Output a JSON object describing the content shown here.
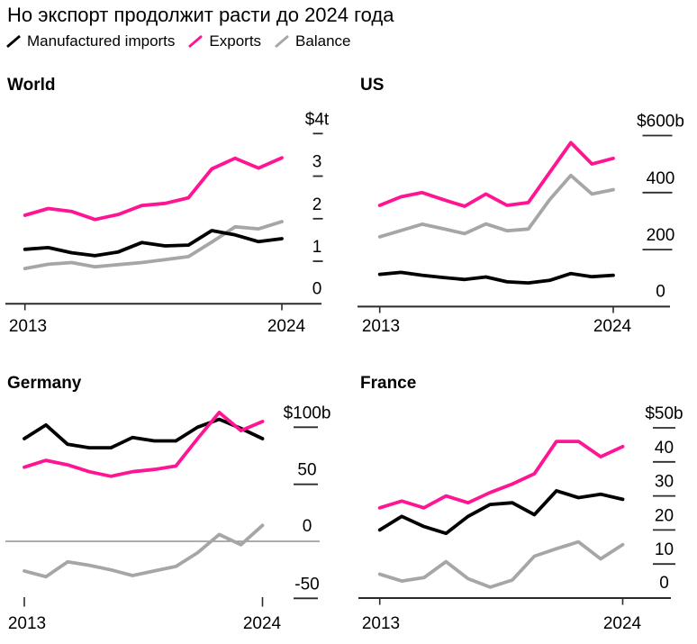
{
  "header": {
    "title": "Но экспорт продолжит расти до 2024 года"
  },
  "legend": {
    "items": [
      {
        "label": "Manufactured imports",
        "series": "imports"
      },
      {
        "label": "Exports",
        "series": "exports"
      },
      {
        "label": "Balance",
        "series": "balance"
      }
    ]
  },
  "chart_data": {
    "type": "line",
    "x": [
      2013,
      2014,
      2015,
      2016,
      2017,
      2018,
      2019,
      2020,
      2021,
      2022,
      2023,
      2024
    ],
    "x_axis_labels": [
      "2013",
      "2024"
    ],
    "grid": false,
    "legend_position": "top",
    "colors": {
      "imports": "#000000",
      "exports": "#ff1493",
      "balance": "#a6a6a6",
      "axis": "#2b2b2b",
      "zero_line": "#7a7a7a"
    },
    "panels": [
      {
        "id": "world",
        "title": "World",
        "unit": "trillion USD",
        "ylim": [
          0,
          4
        ],
        "y_ticks": [
          {
            "label": "$4t",
            "value": 4,
            "dash": true
          },
          {
            "label": "3",
            "value": 3,
            "dash": true
          },
          {
            "label": "2",
            "value": 2,
            "dash": true
          },
          {
            "label": "1",
            "value": 1,
            "dash": true
          },
          {
            "label": "0",
            "value": 0,
            "dash": false
          }
        ],
        "series": {
          "imports": [
            1.28,
            1.32,
            1.2,
            1.13,
            1.22,
            1.44,
            1.36,
            1.38,
            1.72,
            1.62,
            1.46,
            1.53
          ],
          "exports": [
            2.08,
            2.24,
            2.17,
            1.98,
            2.1,
            2.31,
            2.36,
            2.49,
            3.17,
            3.42,
            3.19,
            3.43
          ],
          "balance": [
            0.83,
            0.93,
            0.97,
            0.87,
            0.92,
            0.97,
            1.04,
            1.11,
            1.45,
            1.81,
            1.76,
            1.93
          ]
        }
      },
      {
        "id": "us",
        "title": "US",
        "unit": "billion USD",
        "ylim": [
          0,
          600
        ],
        "y_ticks": [
          {
            "label": "$600b",
            "value": 600,
            "dash": true
          },
          {
            "label": "400",
            "value": 400,
            "dash": true
          },
          {
            "label": "200",
            "value": 200,
            "dash": true
          },
          {
            "label": "0",
            "value": 0,
            "dash": false
          }
        ],
        "series": {
          "imports": [
            113,
            120,
            110,
            102,
            95,
            104,
            87,
            83,
            92,
            116,
            105,
            110
          ],
          "exports": [
            355,
            385,
            400,
            375,
            352,
            395,
            355,
            365,
            470,
            575,
            500,
            520
          ],
          "balance": [
            245,
            267,
            289,
            273,
            256,
            290,
            266,
            272,
            375,
            460,
            395,
            410
          ]
        }
      },
      {
        "id": "germany",
        "title": "Germany",
        "unit": "billion USD",
        "ylim": [
          -50,
          100
        ],
        "y_ticks": [
          {
            "label": "$100b",
            "value": 100,
            "dash": true
          },
          {
            "label": "50",
            "value": 50,
            "dash": true
          },
          {
            "label": "0",
            "value": 0,
            "dash": false
          },
          {
            "label": "-50",
            "value": -50,
            "dash": true
          }
        ],
        "series": {
          "imports": [
            90,
            102,
            85,
            82,
            82,
            91,
            88,
            88,
            100,
            107,
            99,
            90
          ],
          "exports": [
            65,
            71,
            67,
            61,
            57,
            61,
            63,
            66,
            90,
            113,
            97,
            105
          ],
          "balance": [
            -26,
            -31,
            -18,
            -21,
            -25,
            -30,
            -26,
            -22,
            -10,
            6,
            -3,
            14
          ]
        }
      },
      {
        "id": "france",
        "title": "France",
        "unit": "billion USD",
        "ylim": [
          0,
          50
        ],
        "y_ticks": [
          {
            "label": "$50b",
            "value": 50,
            "dash": true
          },
          {
            "label": "40",
            "value": 40,
            "dash": true
          },
          {
            "label": "30",
            "value": 30,
            "dash": true
          },
          {
            "label": "20",
            "value": 20,
            "dash": true
          },
          {
            "label": "10",
            "value": 10,
            "dash": true
          },
          {
            "label": "0",
            "value": 0,
            "dash": false
          }
        ],
        "series": {
          "imports": [
            20,
            24,
            21,
            19,
            24,
            27.5,
            28,
            24.5,
            31.5,
            29.5,
            30.5,
            29
          ],
          "exports": [
            26.5,
            28.5,
            26.5,
            30,
            28,
            31,
            33.5,
            36.5,
            46,
            46,
            41.5,
            44.5
          ],
          "balance": [
            7,
            5,
            6,
            10.7,
            5.7,
            3.2,
            5.3,
            12.3,
            14.5,
            16.5,
            11.5,
            15.7
          ]
        }
      }
    ]
  }
}
